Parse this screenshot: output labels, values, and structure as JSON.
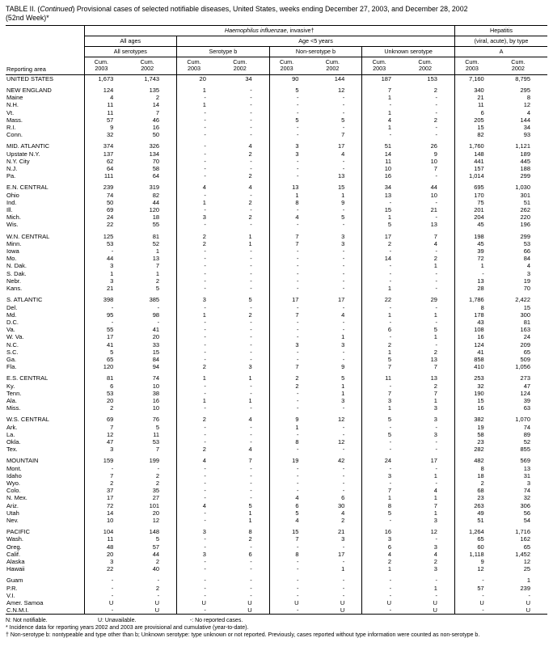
{
  "title": {
    "prefix": "TABLE II. (",
    "continued": "Continued",
    "rest": ") Provisional cases of selected notifiable diseases, United States, weeks ending December 27, 2003, and December 28, 2002",
    "week": "(52nd Week)*"
  },
  "header": {
    "reporting_area": "Reporting area",
    "hib_italic": "Haemophilus influenzae",
    "hib_rest": ", invasive†",
    "hepatitis": "Hepatitis",
    "all_ages": "All ages",
    "age_under5": "Age <5 years",
    "hepatitis_sub": "(viral, acute), by type",
    "all_serotypes": "All serotypes",
    "serotype_b": "Serotype b",
    "non_serotype_b": "Non-serotype b",
    "unknown_serotype": "Unknown serotype",
    "hep_a": "A",
    "cum": "Cum.",
    "y2003": "2003",
    "y2002": "2002"
  },
  "table": {
    "sections": [
      [
        [
          "UNITED STATES",
          "1,673",
          "1,743",
          "20",
          "34",
          "90",
          "144",
          "187",
          "153",
          "7,160",
          "8,795"
        ]
      ],
      [
        [
          "NEW ENGLAND",
          "124",
          "135",
          "1",
          "-",
          "5",
          "12",
          "7",
          "2",
          "340",
          "295"
        ],
        [
          "Maine",
          "4",
          "2",
          "-",
          "-",
          "-",
          "-",
          "1",
          "-",
          "21",
          "8"
        ],
        [
          "N.H.",
          "11",
          "14",
          "1",
          "-",
          "-",
          "-",
          "-",
          "-",
          "11",
          "12"
        ],
        [
          "Vt.",
          "11",
          "7",
          "-",
          "-",
          "-",
          "-",
          "1",
          "-",
          "6",
          "4"
        ],
        [
          "Mass.",
          "57",
          "46",
          "-",
          "-",
          "5",
          "5",
          "4",
          "2",
          "205",
          "144"
        ],
        [
          "R.I.",
          "9",
          "16",
          "-",
          "-",
          "-",
          "-",
          "1",
          "-",
          "15",
          "34"
        ],
        [
          "Conn.",
          "32",
          "50",
          "-",
          "-",
          "-",
          "7",
          "-",
          "-",
          "82",
          "93"
        ]
      ],
      [
        [
          "MID. ATLANTIC",
          "374",
          "326",
          "-",
          "4",
          "3",
          "17",
          "51",
          "26",
          "1,760",
          "1,121"
        ],
        [
          "Upstate N.Y.",
          "137",
          "134",
          "-",
          "2",
          "3",
          "4",
          "14",
          "9",
          "148",
          "189"
        ],
        [
          "N.Y. City",
          "62",
          "70",
          "-",
          "-",
          "-",
          "-",
          "11",
          "10",
          "441",
          "445"
        ],
        [
          "N.J.",
          "64",
          "58",
          "-",
          "-",
          "-",
          "-",
          "10",
          "7",
          "157",
          "188"
        ],
        [
          "Pa.",
          "111",
          "64",
          "-",
          "2",
          "-",
          "13",
          "16",
          "-",
          "1,014",
          "299"
        ]
      ],
      [
        [
          "E.N. CENTRAL",
          "239",
          "319",
          "4",
          "4",
          "13",
          "15",
          "34",
          "44",
          "695",
          "1,030"
        ],
        [
          "Ohio",
          "74",
          "82",
          "-",
          "-",
          "1",
          "1",
          "13",
          "10",
          "170",
          "301"
        ],
        [
          "Ind.",
          "50",
          "44",
          "1",
          "2",
          "8",
          "9",
          "-",
          "-",
          "75",
          "51"
        ],
        [
          "Ill.",
          "69",
          "120",
          "-",
          "-",
          "-",
          "-",
          "15",
          "21",
          "201",
          "262"
        ],
        [
          "Mich.",
          "24",
          "18",
          "3",
          "2",
          "4",
          "5",
          "1",
          "-",
          "204",
          "220"
        ],
        [
          "Wis.",
          "22",
          "55",
          "-",
          "-",
          "-",
          "-",
          "5",
          "13",
          "45",
          "196"
        ]
      ],
      [
        [
          "W.N. CENTRAL",
          "125",
          "81",
          "2",
          "1",
          "7",
          "3",
          "17",
          "7",
          "198",
          "299"
        ],
        [
          "Minn.",
          "53",
          "52",
          "2",
          "1",
          "7",
          "3",
          "2",
          "4",
          "45",
          "53"
        ],
        [
          "Iowa",
          "-",
          "1",
          "-",
          "-",
          "-",
          "-",
          "-",
          "-",
          "39",
          "66"
        ],
        [
          "Mo.",
          "44",
          "13",
          "-",
          "-",
          "-",
          "-",
          "14",
          "2",
          "72",
          "84"
        ],
        [
          "N. Dak.",
          "3",
          "7",
          "-",
          "-",
          "-",
          "-",
          "-",
          "1",
          "1",
          "4"
        ],
        [
          "S. Dak.",
          "1",
          "1",
          "-",
          "-",
          "-",
          "-",
          "-",
          "-",
          "-",
          "3"
        ],
        [
          "Nebr.",
          "3",
          "2",
          "-",
          "-",
          "-",
          "-",
          "-",
          "-",
          "13",
          "19"
        ],
        [
          "Kans.",
          "21",
          "5",
          "-",
          "-",
          "-",
          "-",
          "1",
          "-",
          "28",
          "70"
        ]
      ],
      [
        [
          "S. ATLANTIC",
          "398",
          "385",
          "3",
          "5",
          "17",
          "17",
          "22",
          "29",
          "1,786",
          "2,422"
        ],
        [
          "Del.",
          "-",
          "-",
          "-",
          "-",
          "-",
          "-",
          "-",
          "-",
          "8",
          "15"
        ],
        [
          "Md.",
          "95",
          "98",
          "1",
          "2",
          "7",
          "4",
          "1",
          "1",
          "178",
          "300"
        ],
        [
          "D.C.",
          "-",
          "-",
          "-",
          "-",
          "-",
          "-",
          "-",
          "-",
          "43",
          "81"
        ],
        [
          "Va.",
          "55",
          "41",
          "-",
          "-",
          "-",
          "-",
          "6",
          "5",
          "108",
          "163"
        ],
        [
          "W. Va.",
          "17",
          "20",
          "-",
          "-",
          "-",
          "1",
          "-",
          "1",
          "16",
          "24"
        ],
        [
          "N.C.",
          "41",
          "33",
          "-",
          "-",
          "3",
          "3",
          "2",
          "-",
          "124",
          "209"
        ],
        [
          "S.C.",
          "5",
          "15",
          "-",
          "-",
          "-",
          "-",
          "1",
          "2",
          "41",
          "65"
        ],
        [
          "Ga.",
          "65",
          "84",
          "-",
          "-",
          "-",
          "-",
          "5",
          "13",
          "858",
          "509"
        ],
        [
          "Fla.",
          "120",
          "94",
          "2",
          "3",
          "7",
          "9",
          "7",
          "7",
          "410",
          "1,056"
        ]
      ],
      [
        [
          "E.S. CENTRAL",
          "81",
          "74",
          "1",
          "1",
          "2",
          "5",
          "11",
          "13",
          "253",
          "273"
        ],
        [
          "Ky.",
          "6",
          "10",
          "-",
          "-",
          "2",
          "1",
          "-",
          "2",
          "32",
          "47"
        ],
        [
          "Tenn.",
          "53",
          "38",
          "-",
          "-",
          "-",
          "1",
          "7",
          "7",
          "190",
          "124"
        ],
        [
          "Ala.",
          "20",
          "16",
          "1",
          "1",
          "-",
          "3",
          "3",
          "1",
          "15",
          "39"
        ],
        [
          "Miss.",
          "2",
          "10",
          "-",
          "-",
          "-",
          "-",
          "1",
          "3",
          "16",
          "63"
        ]
      ],
      [
        [
          "W.S. CENTRAL",
          "69",
          "76",
          "2",
          "4",
          "9",
          "12",
          "5",
          "3",
          "382",
          "1,070"
        ],
        [
          "Ark.",
          "7",
          "5",
          "-",
          "-",
          "1",
          "-",
          "-",
          "-",
          "19",
          "74"
        ],
        [
          "La.",
          "12",
          "11",
          "-",
          "-",
          "-",
          "-",
          "5",
          "3",
          "58",
          "89"
        ],
        [
          "Okla.",
          "47",
          "53",
          "-",
          "-",
          "8",
          "12",
          "-",
          "-",
          "23",
          "52"
        ],
        [
          "Tex.",
          "3",
          "7",
          "2",
          "4",
          "-",
          "-",
          "-",
          "-",
          "282",
          "855"
        ]
      ],
      [
        [
          "MOUNTAIN",
          "159",
          "199",
          "4",
          "7",
          "19",
          "42",
          "24",
          "17",
          "482",
          "569"
        ],
        [
          "Mont.",
          "-",
          "-",
          "-",
          "-",
          "-",
          "-",
          "-",
          "-",
          "8",
          "13"
        ],
        [
          "Idaho",
          "7",
          "2",
          "-",
          "-",
          "-",
          "-",
          "3",
          "1",
          "18",
          "31"
        ],
        [
          "Wyo.",
          "2",
          "2",
          "-",
          "-",
          "-",
          "-",
          "-",
          "-",
          "2",
          "3"
        ],
        [
          "Colo.",
          "37",
          "35",
          "-",
          "-",
          "-",
          "-",
          "7",
          "4",
          "68",
          "74"
        ],
        [
          "N. Mex.",
          "17",
          "27",
          "-",
          "-",
          "4",
          "6",
          "1",
          "1",
          "23",
          "32"
        ],
        [
          "Ariz.",
          "72",
          "101",
          "4",
          "5",
          "6",
          "30",
          "8",
          "7",
          "263",
          "306"
        ],
        [
          "Utah",
          "14",
          "20",
          "-",
          "1",
          "5",
          "4",
          "5",
          "1",
          "49",
          "56"
        ],
        [
          "Nev.",
          "10",
          "12",
          "-",
          "1",
          "4",
          "2",
          "-",
          "3",
          "51",
          "54"
        ]
      ],
      [
        [
          "PACIFIC",
          "104",
          "148",
          "3",
          "8",
          "15",
          "21",
          "16",
          "12",
          "1,264",
          "1,716"
        ],
        [
          "Wash.",
          "11",
          "5",
          "-",
          "2",
          "7",
          "3",
          "3",
          "-",
          "65",
          "162"
        ],
        [
          "Oreg.",
          "48",
          "57",
          "-",
          "-",
          "-",
          "-",
          "6",
          "3",
          "60",
          "65"
        ],
        [
          "Calif.",
          "20",
          "44",
          "3",
          "6",
          "8",
          "17",
          "4",
          "4",
          "1,118",
          "1,452"
        ],
        [
          "Alaska",
          "3",
          "2",
          "-",
          "-",
          "-",
          "-",
          "2",
          "2",
          "9",
          "12"
        ],
        [
          "Hawaii",
          "22",
          "40",
          "-",
          "-",
          "-",
          "1",
          "1",
          "3",
          "12",
          "25"
        ]
      ],
      [
        [
          "Guam",
          "-",
          "-",
          "-",
          "-",
          "-",
          "-",
          "-",
          "-",
          "-",
          "1"
        ],
        [
          "P.R.",
          "-",
          "2",
          "-",
          "-",
          "-",
          "-",
          "-",
          "1",
          "57",
          "239"
        ],
        [
          "V.I.",
          "-",
          "-",
          "-",
          "-",
          "-",
          "-",
          "-",
          "-",
          "-",
          "-"
        ],
        [
          "Amer. Samoa",
          "U",
          "U",
          "U",
          "U",
          "U",
          "U",
          "U",
          "U",
          "U",
          "U"
        ],
        [
          "C.N.M.I.",
          "-",
          "U",
          "-",
          "U",
          "-",
          "U",
          "-",
          "U",
          "-",
          "U"
        ]
      ]
    ]
  },
  "footnotes": {
    "legend_n": "N: Not notifiable.",
    "legend_u": "U: Unavailable.",
    "legend_dash": "-: No reported cases.",
    "asterisk": "* Incidence data for reporting years 2002 and 2003 are provisional and cumulative (year-to-date).",
    "dagger": "† Non-serotype b: nontypeable and type other than b; Unknown serotype: type unknown or not reported. Previously, cases reported without type information were counted as non-serotype b."
  }
}
